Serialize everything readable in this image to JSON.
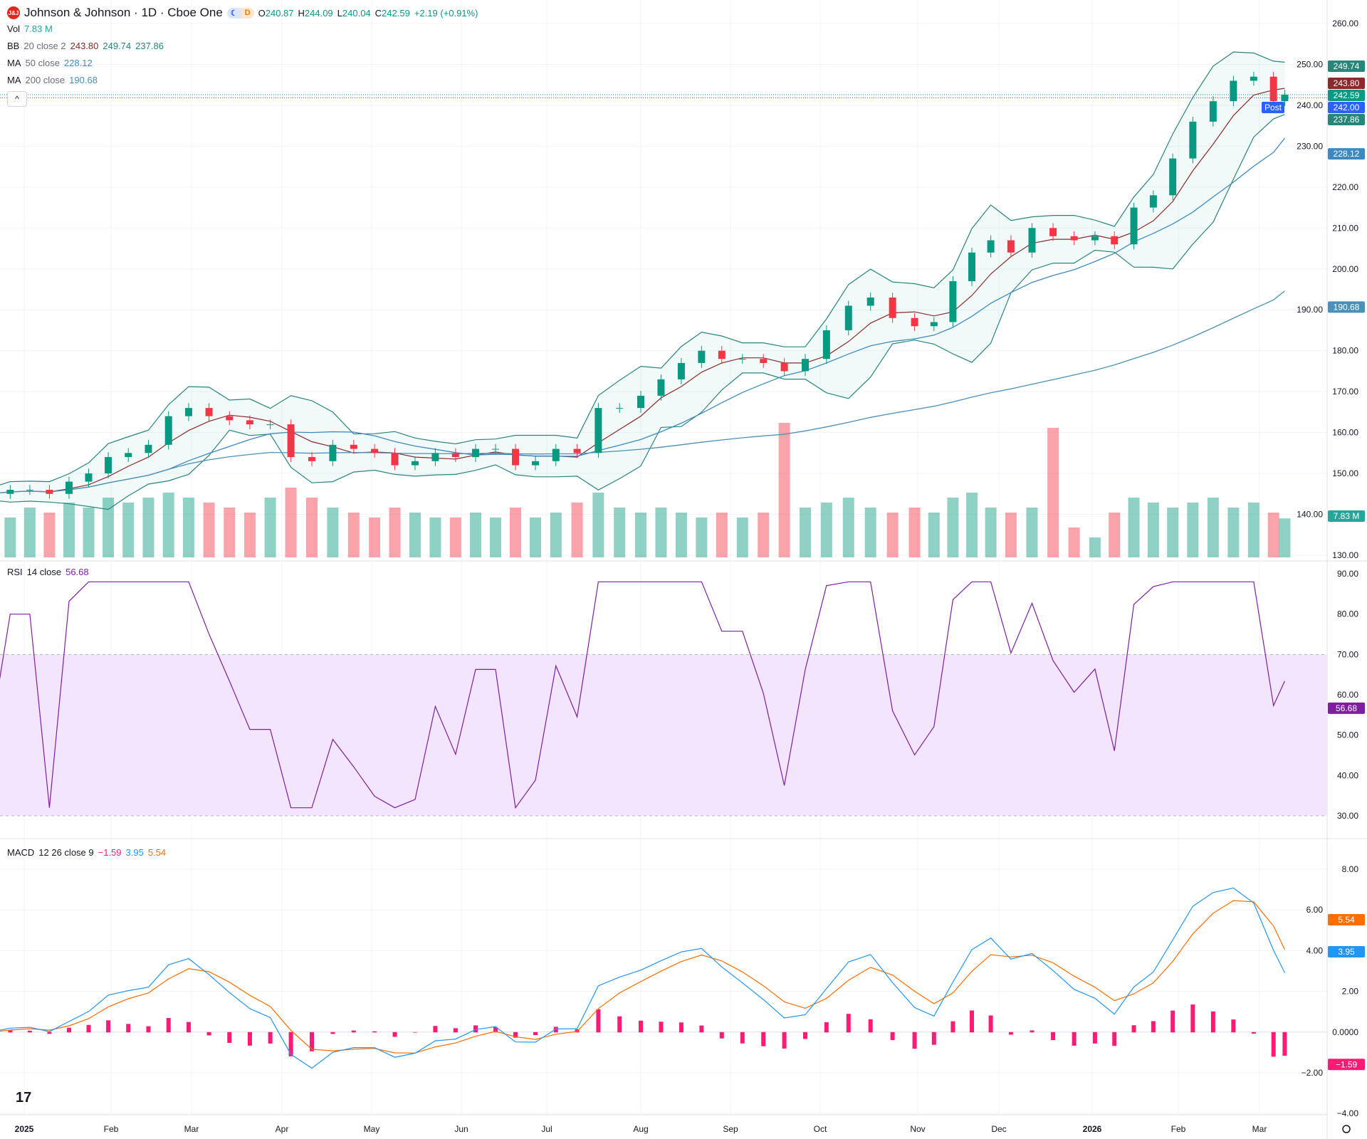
{
  "header": {
    "symbol": "Johnson & Johnson · 1D · Cboe One",
    "logo_text": "J&J",
    "session_badges": [
      "☾",
      "D"
    ],
    "open_label": "O",
    "open": "240.87",
    "high_label": "H",
    "high": "244.09",
    "low_label": "L",
    "low": "240.04",
    "close_label": "C",
    "close": "242.59",
    "change": "+2.19 (+0.91%)"
  },
  "legends": {
    "vol": {
      "label": "Vol",
      "value": "7.83 M"
    },
    "bb": {
      "label": "BB",
      "params": "20 close 2",
      "basis": "243.80",
      "upper": "249.74",
      "lower": "237.86"
    },
    "ma50": {
      "label": "MA",
      "params": "50 close",
      "value": "228.12"
    },
    "ma200": {
      "label": "MA",
      "params": "200 close",
      "value": "190.68"
    },
    "rsi": {
      "label": "RSI",
      "params": "14 close",
      "value": "56.68"
    },
    "macd": {
      "label": "MACD",
      "params": "12 26 close 9",
      "hist": "−1.59",
      "macd": "3.95",
      "signal": "5.54"
    }
  },
  "badges": {
    "post_label": "Post",
    "post_price": "242.00"
  },
  "colors": {
    "up": "#089981",
    "down": "#f23645",
    "bb_basis": "#8b2a2a",
    "bb_band": "#26867a",
    "ma50": "#3d8ac2",
    "ma200": "#4a90b8",
    "rsi": "#7e1fa0",
    "rsi_bg": "#f3e5fd",
    "macd": "#2196f3",
    "signal": "#ff6d00",
    "hist": "#ff1a75"
  },
  "chart_data": {
    "type": "candlestick",
    "x": [
      "2024-12-20",
      "2024-12-27",
      "2025-01-03",
      "2025-01-10",
      "2025-01-17",
      "2025-01-24",
      "2025-01-31",
      "2025-02-07",
      "2025-02-14",
      "2025-02-21",
      "2025-02-28",
      "2025-03-07",
      "2025-03-14",
      "2025-03-21",
      "2025-03-28",
      "2025-04-04",
      "2025-04-11",
      "2025-04-18",
      "2025-04-25",
      "2025-05-02",
      "2025-05-09",
      "2025-05-16",
      "2025-05-23",
      "2025-05-30",
      "2025-06-06",
      "2025-06-13",
      "2025-06-20",
      "2025-06-27",
      "2025-07-04",
      "2025-07-11",
      "2025-07-18",
      "2025-07-25",
      "2025-08-01",
      "2025-08-08",
      "2025-08-15",
      "2025-08-22",
      "2025-08-29",
      "2025-09-05",
      "2025-09-12",
      "2025-09-19",
      "2025-09-26",
      "2025-10-03",
      "2025-10-10",
      "2025-10-17",
      "2025-10-24",
      "2025-10-31",
      "2025-11-07",
      "2025-11-14",
      "2025-11-21",
      "2025-11-28",
      "2025-12-05",
      "2025-12-12",
      "2025-12-19",
      "2025-12-26",
      "2026-01-02",
      "2026-01-09",
      "2026-01-16",
      "2026-01-23",
      "2026-01-30",
      "2026-02-06",
      "2026-02-13",
      "2026-02-20",
      "2026-02-27",
      "2026-03-06",
      "2026-03-10"
    ],
    "close": [
      145,
      146,
      146,
      145,
      148,
      150,
      154,
      155,
      157,
      164,
      166,
      164,
      163,
      162,
      162,
      154,
      153,
      157,
      156,
      155,
      152,
      153,
      155,
      154,
      156,
      156,
      152,
      153,
      156,
      155,
      166,
      166,
      169,
      173,
      177,
      180,
      178,
      178,
      177,
      175,
      178,
      185,
      191,
      193,
      188,
      186,
      187,
      197,
      204,
      207,
      204,
      210,
      208,
      207,
      208,
      206,
      215,
      218,
      227,
      236,
      241,
      246,
      247,
      241,
      242.59
    ],
    "volume_millions": [
      9,
      8,
      10,
      9,
      11,
      10,
      12,
      11,
      12,
      13,
      12,
      11,
      10,
      9,
      12,
      14,
      12,
      10,
      9,
      8,
      10,
      9,
      8,
      8,
      9,
      8,
      10,
      8,
      9,
      11,
      13,
      10,
      9,
      10,
      9,
      8,
      9,
      8,
      9,
      27,
      10,
      11,
      12,
      10,
      9,
      10,
      9,
      12,
      13,
      10,
      9,
      10,
      26,
      6,
      4,
      9,
      12,
      11,
      10,
      11,
      12,
      10,
      11,
      9,
      7.83
    ],
    "price_axis": {
      "ticks": [
        "260.00",
        "250.00",
        "240.00",
        "230.00",
        "220.00",
        "210.00",
        "200.00",
        "190.00",
        "180.00",
        "170.00",
        "160.00",
        "150.00",
        "140.00",
        "130.00"
      ],
      "range": [
        130,
        260
      ]
    },
    "rsi_axis": {
      "ticks": [
        "90.00",
        "80.00",
        "70.00",
        "60.00",
        "50.00",
        "40.00",
        "30.00"
      ],
      "range": [
        30,
        90
      ],
      "band": [
        30,
        70
      ]
    },
    "macd_axis": {
      "ticks": [
        "8.00",
        "6.00",
        "4.00",
        "2.00",
        "0.0000",
        "−2.00",
        "−4.00"
      ],
      "range": [
        -4,
        8
      ]
    },
    "time_axis": [
      "2025",
      "Feb",
      "Mar",
      "Apr",
      "May",
      "Jun",
      "Jul",
      "Aug",
      "Sep",
      "Oct",
      "Nov",
      "Dec",
      "2026",
      "Feb",
      "Mar"
    ]
  }
}
